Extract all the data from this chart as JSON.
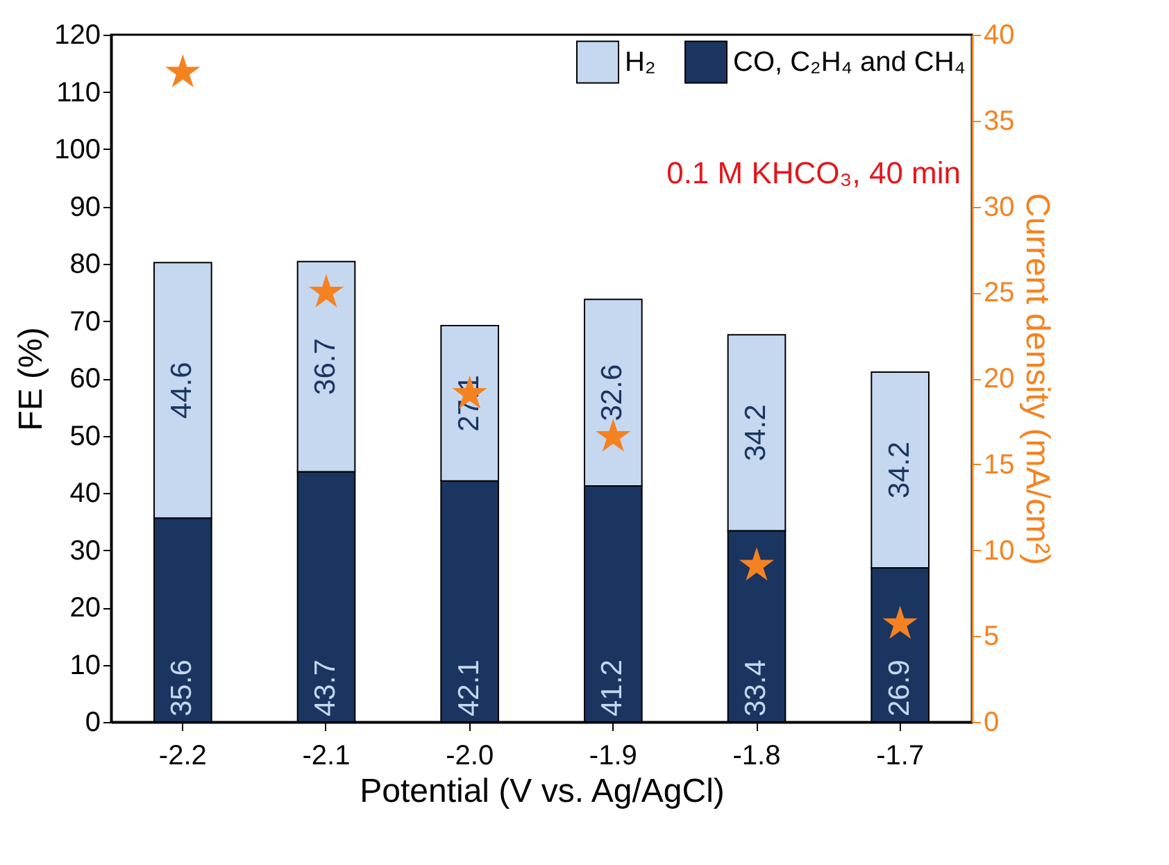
{
  "chart_data": {
    "type": "bar",
    "stacked": true,
    "categories": [
      "-2.2",
      "-2.1",
      "-2.0",
      "-1.9",
      "-1.8",
      "-1.7"
    ],
    "series": [
      {
        "name": "CO, C₂H₄ and CH₄",
        "color": "#1a3560",
        "values": [
          35.6,
          43.7,
          42.1,
          41.2,
          33.4,
          26.9
        ],
        "value_labels": [
          "35.6",
          "43.7",
          "42.1",
          "41.2",
          "33.4",
          "26.9"
        ]
      },
      {
        "name": "H₂",
        "color": "#c5d8f0",
        "values": [
          44.6,
          36.7,
          27.1,
          32.6,
          34.2,
          34.2
        ],
        "value_labels": [
          "44.6",
          "36.7",
          "27.1",
          "32.6",
          "34.2",
          "34.2"
        ]
      },
      {
        "type": "scatter",
        "axis": "y2",
        "marker": "star",
        "color": "#f58220",
        "values": [
          37.8,
          25.0,
          19.1,
          16.6,
          9.1,
          5.7
        ]
      }
    ],
    "xlabel": "Potential (V vs. Ag/AgCl)",
    "ylabel": "FE (%)",
    "y2label": "Current density (mA/cm²)",
    "ylim": [
      0,
      120
    ],
    "yticks": [
      0,
      10,
      20,
      30,
      40,
      50,
      60,
      70,
      80,
      90,
      100,
      110,
      120
    ],
    "y2lim": [
      0,
      40
    ],
    "y2ticks": [
      0,
      5,
      10,
      15,
      20,
      25,
      30,
      35,
      40
    ],
    "annotations": [
      "0.1 M KHCO₃, 40 min"
    ],
    "legend": "top right",
    "grid": false
  }
}
